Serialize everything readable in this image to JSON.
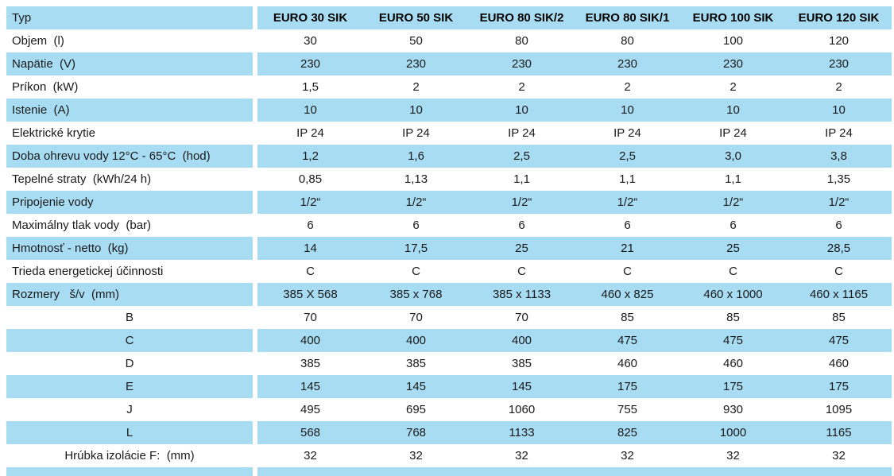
{
  "table": {
    "header": {
      "label": "Typ",
      "columns": [
        "EURO 30 SIK",
        "EURO 50 SIK",
        "EURO 80 SIK/2",
        "EURO 80 SIK/1",
        "EURO 100 SIK",
        "EURO 120 SIK"
      ]
    },
    "rows": [
      {
        "label": "Objem  (l)",
        "values": [
          "30",
          "50",
          "80",
          "80",
          "100",
          "120"
        ]
      },
      {
        "label": "Napätie  (V)",
        "values": [
          "230",
          "230",
          "230",
          "230",
          "230",
          "230"
        ]
      },
      {
        "label": "Príkon  (kW)",
        "values": [
          "1,5",
          "2",
          "2",
          "2",
          "2",
          "2"
        ]
      },
      {
        "label": "Istenie  (A)",
        "values": [
          "10",
          "10",
          "10",
          "10",
          "10",
          "10"
        ]
      },
      {
        "label": "Elektrické krytie",
        "values": [
          "IP 24",
          "IP 24",
          "IP 24",
          "IP 24",
          "IP 24",
          "IP 24"
        ]
      },
      {
        "label": "Doba ohrevu vody 12°C - 65°C  (hod)",
        "values": [
          "1,2",
          "1,6",
          "2,5",
          "2,5",
          "3,0",
          "3,8"
        ]
      },
      {
        "label": "Tepelné straty  (kWh/24 h)",
        "values": [
          "0,85",
          "1,13",
          "1,1",
          "1,1",
          "1,1",
          "1,35"
        ]
      },
      {
        "label": "Pripojenie vody",
        "values": [
          "1/2“",
          "1/2“",
          "1/2“",
          "1/2“",
          "1/2“",
          "1/2“"
        ]
      },
      {
        "label": "Maximálny tlak vody  (bar)",
        "values": [
          "6",
          "6",
          "6",
          "6",
          "6",
          "6"
        ]
      },
      {
        "label": "Hmotnosť - netto  (kg)",
        "values": [
          "14",
          "17,5",
          "25",
          "21",
          "25",
          "28,5"
        ]
      },
      {
        "label": "Trieda energetickej účinnosti",
        "values": [
          "C",
          "C",
          "C",
          "C",
          "C",
          "C"
        ]
      },
      {
        "label": "Rozmery   š/v  (mm)",
        "values": [
          "385 X 568",
          "385 x 768",
          "385 x 1133",
          "460 x 825",
          "460 x 1000",
          "460 x 1165"
        ]
      },
      {
        "label": "B",
        "values": [
          "70",
          "70",
          "70",
          "85",
          "85",
          "85"
        ]
      },
      {
        "label": "C",
        "values": [
          "400",
          "400",
          "400",
          "475",
          "475",
          "475"
        ]
      },
      {
        "label": "D",
        "values": [
          "385",
          "385",
          "385",
          "460",
          "460",
          "460"
        ]
      },
      {
        "label": "E",
        "values": [
          "145",
          "145",
          "145",
          "175",
          "175",
          "175"
        ]
      },
      {
        "label": "J",
        "values": [
          "495",
          "695",
          "1060",
          "755",
          "930",
          "1095"
        ]
      },
      {
        "label": "L",
        "values": [
          "568",
          "768",
          "1133",
          "825",
          "1000",
          "1165"
        ]
      },
      {
        "label": "Hrúbka izolácie F:  (mm)",
        "values": [
          "32",
          "32",
          "32",
          "32",
          "32",
          "32"
        ]
      }
    ],
    "colors": {
      "stripe_blue": "#a8dcf2",
      "text": "#1a1a1a"
    }
  }
}
